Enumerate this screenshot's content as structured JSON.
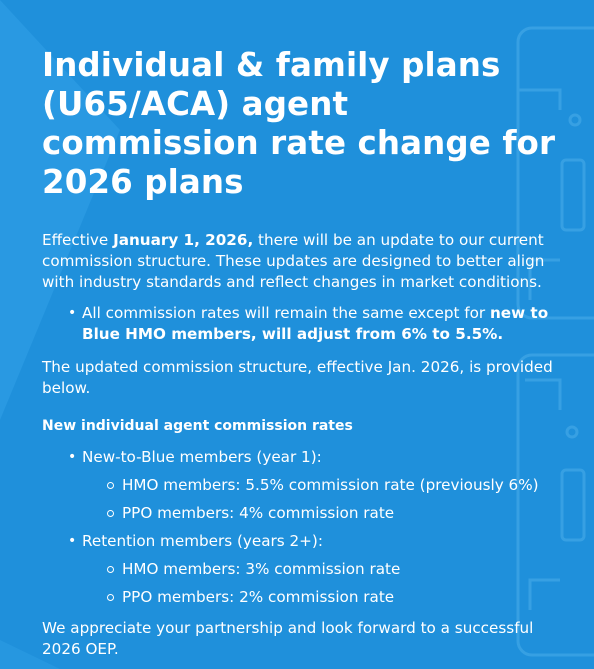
{
  "title": "Individual & family plans (U65/ACA) agent commission rate change for 2026 plans",
  "intro": {
    "prefix": "Effective ",
    "date": "January 1, 2026,",
    "suffix": " there will be an update to our current commission structure. These updates are designed to better align with industry standards and reflect changes in market conditions."
  },
  "bullet": {
    "text": "All commission rates will remain the same except for ",
    "bold": "new to Blue HMO members, will adjust from 6% to 5.5%."
  },
  "updated_text": "The updated commission structure, effective Jan. 2026, is provided below.",
  "rates_heading": "New individual agent commission rates",
  "groups": [
    {
      "label": "New-to-Blue members (year 1):",
      "items": [
        "HMO members: 5.5% commission rate (previously 6%)",
        "PPO members: 4% commission rate"
      ]
    },
    {
      "label": "Retention members (years 2+):",
      "items": [
        "HMO members: 3% commission rate",
        "PPO members: 2% commission rate"
      ]
    }
  ],
  "closing": "We appreciate your partnership and look forward to a successful 2026 OEP.",
  "colors": {
    "background": "#1f90db",
    "text": "#ffffff",
    "accent_shape": "#2a9ae2"
  }
}
